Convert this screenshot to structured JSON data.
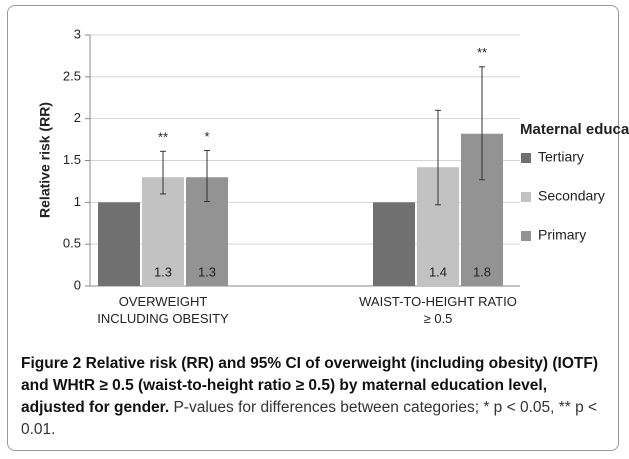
{
  "chart_data": {
    "type": "bar",
    "y_label": "Relative risk (RR)",
    "categories": [
      "OVERWEIGHT INCLUDING OBESITY",
      "WAIST-TO-HEIGHT RATIO ≥ 0.5"
    ],
    "legend_title": "Maternal education",
    "series": [
      {
        "name": "Tertiary",
        "color": "#707070",
        "values": [
          1,
          1
        ]
      },
      {
        "name": "Secondary",
        "color": "#c2c2c2",
        "values": [
          1.3,
          1.42
        ],
        "value_labels": [
          "1.3",
          "1.4"
        ],
        "ci_low": [
          1.1,
          0.97
        ],
        "ci_high": [
          1.61,
          2.1
        ],
        "significance": [
          "**",
          null
        ]
      },
      {
        "name": "Primary",
        "color": "#939393",
        "values": [
          1.3,
          1.82
        ],
        "value_labels": [
          "1.3",
          "1.8"
        ],
        "ci_low": [
          1.01,
          1.27
        ],
        "ci_high": [
          1.62,
          2.62
        ],
        "significance": [
          "*",
          "**"
        ]
      }
    ],
    "ylim": [
      0,
      3
    ],
    "yticks": [
      0,
      0.5,
      1,
      1.5,
      2,
      2.5,
      3
    ],
    "grid": true,
    "legend": "right"
  },
  "caption": {
    "bold": "Figure 2 Relative risk (RR) and 95% CI of overweight (including obesity) (IOTF) and WHtR ≥ 0.5 (waist-to-height ratio ≥ 0.5) by maternal education level, adjusted for gender.",
    "text": "P-values for differences between categories; * p < 0.05, ** p < 0.01."
  }
}
